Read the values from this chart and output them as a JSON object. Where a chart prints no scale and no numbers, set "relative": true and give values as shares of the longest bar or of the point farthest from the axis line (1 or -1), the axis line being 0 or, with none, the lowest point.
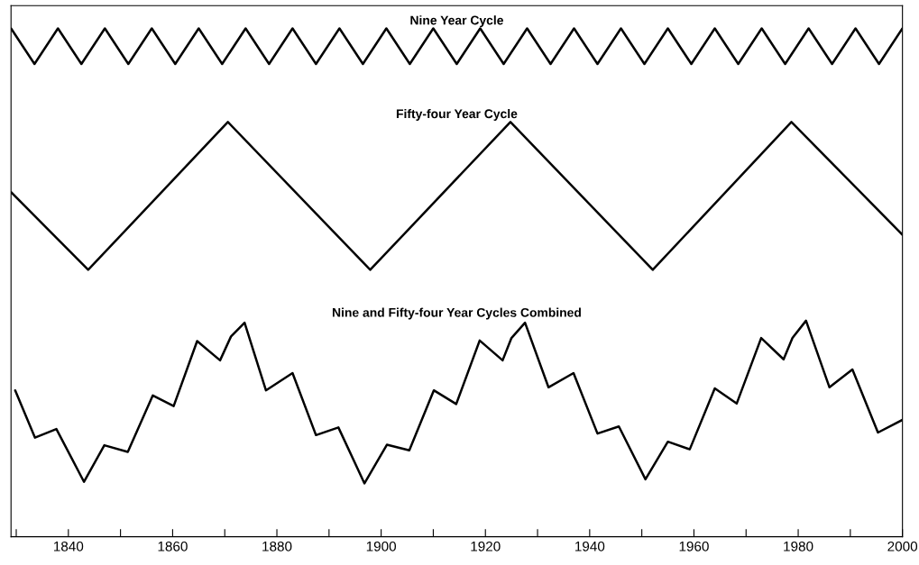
{
  "chart_data": {
    "type": "line",
    "relative": true,
    "xlim": [
      1829,
      2000
    ],
    "xticks": [
      {
        "value": 1830,
        "label": null
      },
      1840,
      {
        "value": 1850,
        "label": null
      },
      1860,
      {
        "value": 1870,
        "label": null
      },
      1880,
      {
        "value": 1890,
        "label": null
      },
      1900,
      {
        "value": 1910,
        "label": null
      },
      1920,
      {
        "value": 1930,
        "label": null
      },
      1940,
      {
        "value": 1950,
        "label": null
      },
      1960,
      {
        "value": 1970,
        "label": null
      },
      1980,
      {
        "value": 1990,
        "label": null
      },
      2000
    ],
    "grid": false,
    "legend": false,
    "tick_labels": "x",
    "marker": "none",
    "line_style": "solid",
    "series": [
      {
        "name": "Nine Year Cycle",
        "color": "#000000",
        "x": [
          1829,
          1833.5,
          1838,
          1842.5,
          1847,
          1851.5,
          1856,
          1860.5,
          1865,
          1869.5,
          1874,
          1878.5,
          1883,
          1887.5,
          1892,
          1896.5,
          1901,
          1905.5,
          1910,
          1914.5,
          1919,
          1923.5,
          1928,
          1932.5,
          1937,
          1941.5,
          1946,
          1950.5,
          1955,
          1959.5,
          1964,
          1968.5,
          1973,
          1977.5,
          1982,
          1986.5,
          1991,
          1995.5,
          2000
        ],
        "values": [
          1,
          0.93,
          1,
          0.93,
          1,
          0.93,
          1,
          0.93,
          1,
          0.93,
          1,
          0.93,
          1,
          0.93,
          1,
          0.93,
          1,
          0.93,
          1,
          0.93,
          1,
          0.93,
          1,
          0.93,
          1,
          0.93,
          1,
          0.93,
          1,
          0.93,
          1,
          0.93,
          1,
          0.93,
          1,
          0.93,
          1,
          0.93,
          1
        ]
      },
      {
        "name": "Fifty-four Year Cycle",
        "color": "#000000",
        "x": [
          1829,
          1843.8,
          1870.6,
          1897.9,
          1924.8,
          1952.1,
          1978.7,
          2000
        ],
        "values": [
          0.678,
          0.525,
          0.816,
          0.525,
          0.816,
          0.525,
          0.816,
          0.594
        ]
      },
      {
        "name": "Nine and Fifty-four Year Cycles Combined",
        "color": "#000000",
        "x": [
          1829.8,
          1833.6,
          1837.7,
          1843.0,
          1846.9,
          1851.4,
          1856.2,
          1860.2,
          1864.7,
          1869.1,
          1871.2,
          1873.8,
          1877.9,
          1883.0,
          1887.5,
          1891.8,
          1896.8,
          1901.1,
          1905.4,
          1910.1,
          1914.4,
          1918.9,
          1923.3,
          1925.0,
          1927.6,
          1932.1,
          1936.9,
          1941.5,
          1945.6,
          1950.7,
          1955.0,
          1959.2,
          1964.0,
          1968.2,
          1972.9,
          1977.2,
          1978.9,
          1981.5,
          1986.0,
          1990.4,
          1995.3,
          2000.0
        ],
        "values": [
          0.288,
          0.195,
          0.212,
          0.108,
          0.18,
          0.167,
          0.278,
          0.257,
          0.385,
          0.347,
          0.394,
          0.421,
          0.288,
          0.322,
          0.2,
          0.215,
          0.105,
          0.181,
          0.17,
          0.288,
          0.261,
          0.386,
          0.347,
          0.391,
          0.421,
          0.294,
          0.322,
          0.203,
          0.217,
          0.113,
          0.187,
          0.172,
          0.292,
          0.262,
          0.391,
          0.349,
          0.391,
          0.425,
          0.294,
          0.329,
          0.205,
          0.23
        ]
      }
    ]
  }
}
